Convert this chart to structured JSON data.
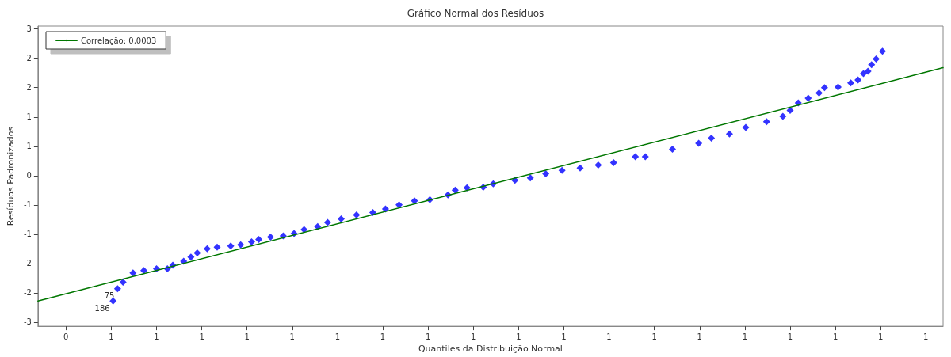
{
  "chart_data": {
    "type": "scatter",
    "title": "Gráfico Normal dos Resíduos",
    "xlabel": "Quantiles da Distribuição Normal",
    "ylabel": "Resíduos Padronizados",
    "xlim": [
      0.419,
      1.419
    ],
    "ylim": [
      -2.57,
      2.55
    ],
    "xticks": [
      {
        "value": 0.45,
        "label": "0"
      },
      {
        "value": 0.5,
        "label": "1"
      },
      {
        "value": 0.55,
        "label": "1"
      },
      {
        "value": 0.6,
        "label": "1"
      },
      {
        "value": 0.65,
        "label": "1"
      },
      {
        "value": 0.7,
        "label": "1"
      },
      {
        "value": 0.75,
        "label": "1"
      },
      {
        "value": 0.8,
        "label": "1"
      },
      {
        "value": 0.85,
        "label": "1"
      },
      {
        "value": 0.9,
        "label": "1"
      },
      {
        "value": 0.95,
        "label": "1"
      },
      {
        "value": 1.0,
        "label": "1"
      },
      {
        "value": 1.05,
        "label": "1"
      },
      {
        "value": 1.1,
        "label": "1"
      },
      {
        "value": 1.15,
        "label": "1"
      },
      {
        "value": 1.2,
        "label": "1"
      },
      {
        "value": 1.25,
        "label": "1"
      },
      {
        "value": 1.3,
        "label": "1"
      },
      {
        "value": 1.35,
        "label": "1"
      },
      {
        "value": 1.4,
        "label": "1"
      }
    ],
    "yticks": [
      {
        "value": -2.5,
        "label": "-3"
      },
      {
        "value": -2,
        "label": "-2"
      },
      {
        "value": -1.5,
        "label": "-2"
      },
      {
        "value": -1,
        "label": "-1"
      },
      {
        "value": -0.5,
        "label": "-1"
      },
      {
        "value": 0,
        "label": "0"
      },
      {
        "value": 0.5,
        "label": "1"
      },
      {
        "value": 1,
        "label": "1"
      },
      {
        "value": 1.5,
        "label": "2"
      },
      {
        "value": 2,
        "label": "2"
      },
      {
        "value": 2.5,
        "label": "3"
      }
    ],
    "grid": false,
    "legend": "top left",
    "marker": "diamond",
    "series": [
      {
        "color": "#0000ff",
        "x": [
          0.502,
          0.507,
          0.513,
          0.524,
          0.536,
          0.55,
          0.562,
          0.568,
          0.58,
          0.588,
          0.595,
          0.606,
          0.617,
          0.632,
          0.643,
          0.655,
          0.663,
          0.676,
          0.69,
          0.702,
          0.713,
          0.728,
          0.739,
          0.754,
          0.771,
          0.789,
          0.803,
          0.818,
          0.835,
          0.852,
          0.872,
          0.88,
          0.893,
          0.911,
          0.922,
          0.946,
          0.963,
          0.98,
          0.998,
          1.018,
          1.038,
          1.055,
          1.079,
          1.09,
          1.12,
          1.149,
          1.163,
          1.183,
          1.201,
          1.224,
          1.242,
          1.25,
          1.259,
          1.27,
          1.282,
          1.288,
          1.303,
          1.317,
          1.325,
          1.331,
          1.336,
          1.34,
          1.345,
          1.352
        ],
        "values": [
          -2.14,
          -1.93,
          -1.82,
          -1.66,
          -1.62,
          -1.59,
          -1.59,
          -1.53,
          -1.46,
          -1.39,
          -1.32,
          -1.25,
          -1.22,
          -1.2,
          -1.18,
          -1.13,
          -1.09,
          -1.05,
          -1.03,
          -0.99,
          -0.92,
          -0.87,
          -0.8,
          -0.74,
          -0.67,
          -0.63,
          -0.57,
          -0.5,
          -0.43,
          -0.41,
          -0.33,
          -0.25,
          -0.21,
          -0.2,
          -0.14,
          -0.08,
          -0.04,
          0.03,
          0.09,
          0.13,
          0.18,
          0.22,
          0.32,
          0.32,
          0.45,
          0.55,
          0.64,
          0.71,
          0.82,
          0.92,
          1.01,
          1.11,
          1.24,
          1.32,
          1.41,
          1.5,
          1.51,
          1.58,
          1.63,
          1.74,
          1.78,
          1.89,
          1.99,
          2.12
        ]
      },
      {
        "type": "line",
        "name": "Correlação: 0,0003",
        "color": "#007700",
        "marker": "none",
        "x": [
          0.419,
          1.419
        ],
        "values": [
          -2.14,
          1.84
        ]
      }
    ],
    "annotations": [
      {
        "text": "186",
        "x": 0.502,
        "y": -2.14
      },
      {
        "text": "75",
        "x": 0.507,
        "y": -1.93
      }
    ]
  }
}
